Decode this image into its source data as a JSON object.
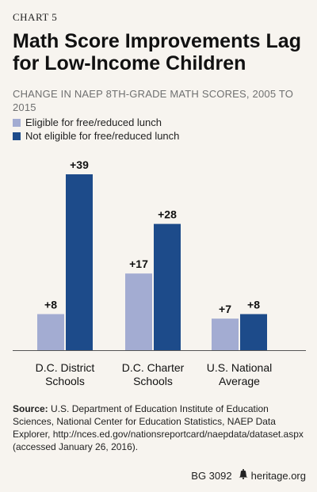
{
  "header": {
    "chart_number": "CHART 5",
    "title": "Math Score Improvements Lag for Low-Income Children",
    "subtitle": "CHANGE IN NAEP 8TH-GRADE MATH SCORES, 2005 TO 2015"
  },
  "colors": {
    "eligible": "#a3acd2",
    "not_eligible": "#1d4b8a",
    "axis": "#555555"
  },
  "chart_data": {
    "type": "bar",
    "categories": [
      "D.C. District Schools",
      "D.C. Charter Schools",
      "U.S. National Average"
    ],
    "category_lines": [
      [
        "D.C. District",
        "Schools"
      ],
      [
        "D.C. Charter",
        "Schools"
      ],
      [
        "U.S. National",
        "Average"
      ]
    ],
    "series": [
      {
        "name": "Eligible for free/reduced lunch",
        "values": [
          8,
          17,
          7
        ],
        "labels": [
          "+8",
          "+17",
          "+7"
        ]
      },
      {
        "name": "Not eligible for free/reduced lunch",
        "values": [
          39,
          28,
          8
        ],
        "labels": [
          "+39",
          "+28",
          "+8"
        ]
      }
    ],
    "ylim": [
      0,
      39
    ],
    "title": "CHANGE IN NAEP 8TH-GRADE MATH SCORES, 2005 TO 2015",
    "legend": "top-left",
    "grid": false
  },
  "source": {
    "label": "Source:",
    "text": " U.S. Department of Education Institute of Education Sciences, National Center for Education Statistics, NAEP Data Explorer, http://nces.ed.gov/nationsreportcard/naepdata/dataset.aspx (accessed January 26, 2016)."
  },
  "footer": {
    "report_id": "BG 3092",
    "site": "heritage.org",
    "logo_icon": "liberty-bell-icon"
  }
}
